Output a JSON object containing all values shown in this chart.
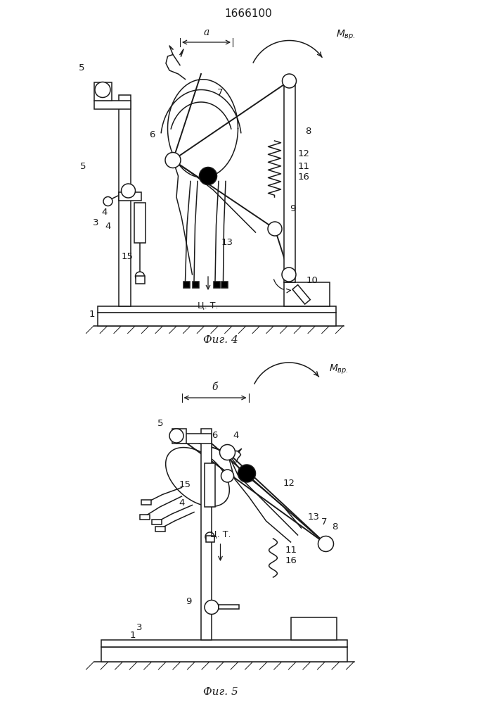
{
  "title": "1666100",
  "fig4_caption": "Фиг. 4",
  "fig5_caption": "Фиг. 5",
  "bg_color": "#ffffff",
  "line_color": "#1a1a1a",
  "fig_title_fontsize": 11,
  "caption_fontsize": 11,
  "label_fontsize": 9.5
}
